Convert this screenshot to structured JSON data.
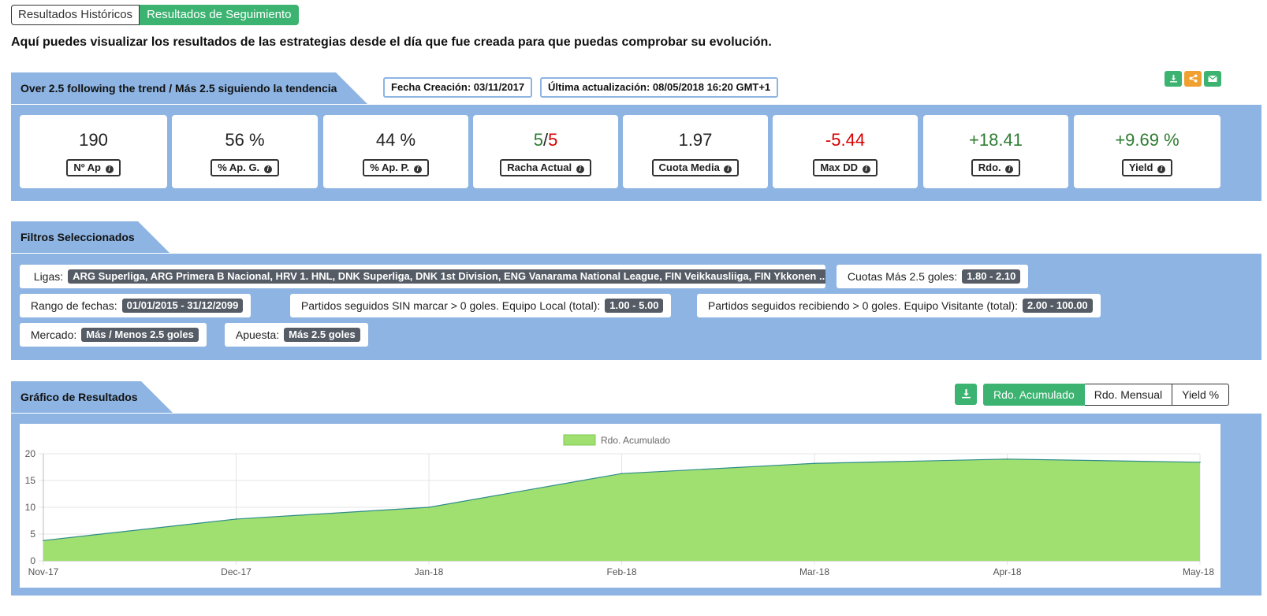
{
  "tabs": {
    "historical": "Resultados Históricos",
    "tracking": "Resultados de Seguimiento"
  },
  "intro": "Aquí puedes visualizar los resultados de las estrategias desde el día que fue creada para que puedas comprobar su evolución.",
  "strategy": {
    "name": "Over 2.5 following the trend / Más 2.5 siguiendo la tendencia",
    "created": "Fecha Creación: 03/11/2017",
    "updated": "Última actualización: 08/05/2018 16:20 GMT+1"
  },
  "actions": {
    "download_icon": "download-icon",
    "share_icon": "share-icon",
    "email_icon": "email-icon"
  },
  "stats": [
    {
      "value": "190",
      "label": "Nº Ap"
    },
    {
      "value": "56 %",
      "label": "% Ap. G."
    },
    {
      "value": "44 %",
      "label": "% Ap. P."
    },
    {
      "value_green": "5",
      "sep": "/",
      "value_red": "5",
      "label": "Racha Actual"
    },
    {
      "value": "1.97",
      "label": "Cuota Media"
    },
    {
      "value": "-5.44",
      "label": "Max DD"
    },
    {
      "value": "+18.41",
      "label": "Rdo."
    },
    {
      "value": "+9.69 %",
      "label": "Yield"
    }
  ],
  "filters": {
    "title": "Filtros Seleccionados",
    "items": [
      {
        "label": "Ligas:",
        "value": "ARG Superliga, ARG Primera B Nacional, HRV 1. HNL, DNK Superliga, DNK 1st Division, ENG Vanarama National League, FIN Veikkausliiga, FIN Ykkonen ..."
      },
      {
        "label": "Cuotas Más 2.5 goles:",
        "value": "1.80 - 2.10"
      },
      {
        "label": "Rango de fechas:",
        "value": "01/01/2015 - 31/12/2099"
      },
      {
        "label": "Partidos seguidos SIN marcar > 0 goles. Equipo Local (total):",
        "value": "1.00 - 5.00"
      },
      {
        "label": "Partidos seguidos recibiendo > 0 goles. Equipo Visitante (total):",
        "value": "2.00 - 100.00"
      },
      {
        "label": "Mercado:",
        "value": "Más / Menos 2.5 goles"
      },
      {
        "label": "Apuesta:",
        "value": "Más 2.5 goles"
      }
    ]
  },
  "chart_section": {
    "title": "Gráfico de Resultados",
    "download_icon": "download-icon",
    "buttons": [
      "Rdo. Acumulado",
      "Rdo. Mensual",
      "Yield %"
    ],
    "active_button": "Rdo. Acumulado"
  },
  "chart_data": {
    "type": "area",
    "categories": [
      "Nov-17",
      "Dec-17",
      "Jan-18",
      "Feb-18",
      "Mar-18",
      "Apr-18",
      "May-18"
    ],
    "series": [
      {
        "name": "Rdo. Acumulado",
        "values": [
          3.8,
          7.8,
          10.0,
          16.3,
          18.2,
          19.0,
          18.41
        ]
      }
    ],
    "ylim": [
      0,
      20
    ],
    "yticks": [
      0,
      5,
      10,
      15,
      20
    ],
    "grid": true,
    "legend_position": "top-center",
    "colors": {
      "fill": "#a0e070",
      "line": "#2e8b8b"
    }
  },
  "colors": {
    "panel": "#8db4e2",
    "accent_green": "#3cb371",
    "share_orange": "#f0a030",
    "positive": "#2e7d32",
    "negative": "#d50000"
  }
}
